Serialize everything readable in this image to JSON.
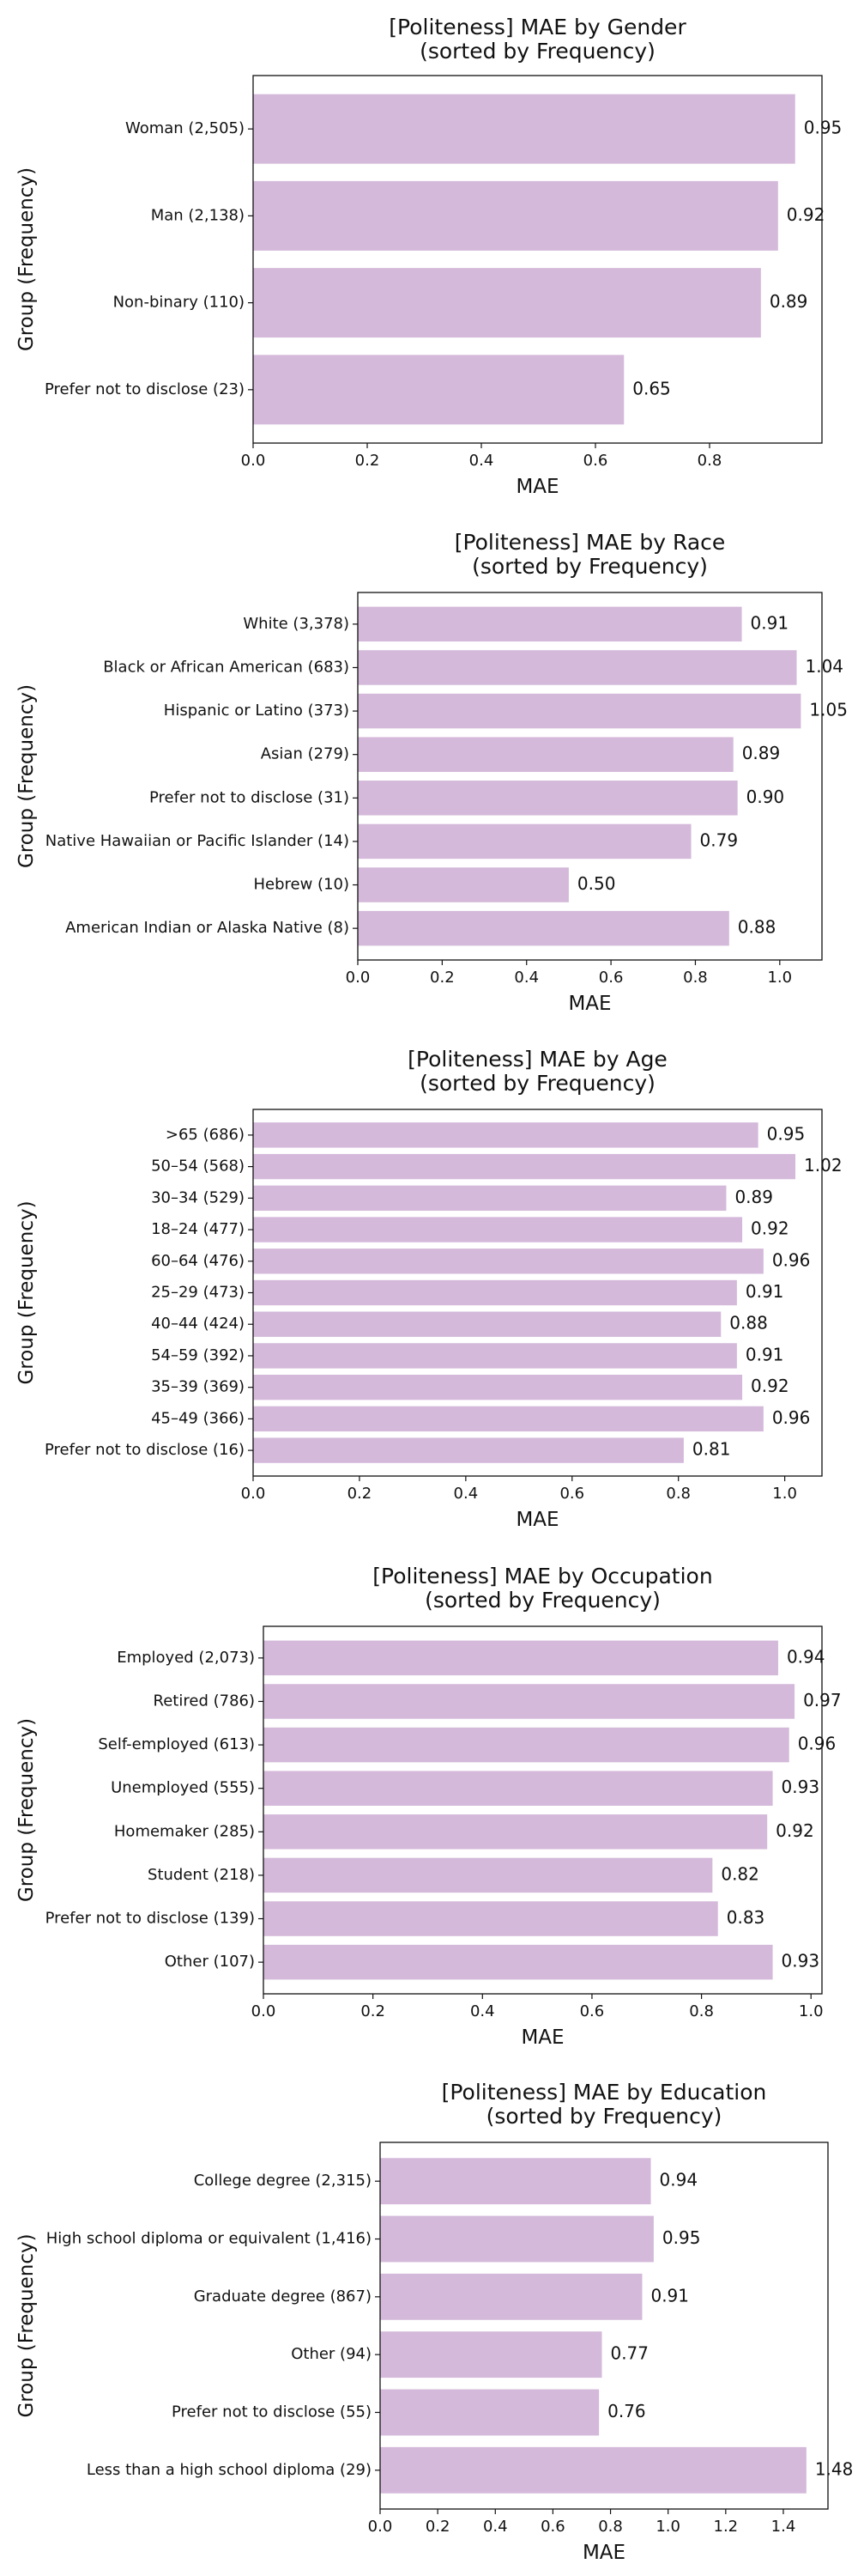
{
  "figure": {
    "ylabel": "Group (Frequency)",
    "xlabel": "MAE"
  },
  "chart_data": [
    {
      "type": "bar",
      "orientation": "horizontal",
      "title": "[Politeness] MAE by Gender",
      "subtitle": "(sorted by Frequency)",
      "xlabel": "MAE",
      "ylabel": "Group (Frequency)",
      "categories": [
        "Woman (2,505)",
        "Man (2,138)",
        "Non-binary (110)",
        "Prefer not to disclose (23)"
      ],
      "values": [
        0.95,
        0.92,
        0.89,
        0.65
      ],
      "value_labels": [
        "0.95",
        "0.92",
        "0.89",
        "0.65"
      ],
      "xlim": [
        0,
        0.997
      ],
      "xticks": [
        0,
        0.2,
        0.4,
        0.6,
        0.8
      ],
      "xtick_labels": [
        "0.0",
        "0.2",
        "0.4",
        "0.6",
        "0.8"
      ],
      "bar_color": "#d4b9da",
      "grid": false
    },
    {
      "type": "bar",
      "orientation": "horizontal",
      "title": "[Politeness] MAE by Race",
      "subtitle": "(sorted by Frequency)",
      "xlabel": "MAE",
      "ylabel": "Group (Frequency)",
      "categories": [
        "White (3,378)",
        "Black or African American (683)",
        "Hispanic or Latino (373)",
        "Asian (279)",
        "Prefer not to disclose (31)",
        "Native Hawaiian or Pacific Islander (14)",
        "Hebrew (10)",
        "American Indian or Alaska Native (8)"
      ],
      "values": [
        0.91,
        1.04,
        1.05,
        0.89,
        0.9,
        0.79,
        0.5,
        0.88
      ],
      "value_labels": [
        "0.91",
        "1.04",
        "1.05",
        "0.89",
        "0.90",
        "0.79",
        "0.50",
        "0.88"
      ],
      "xlim": [
        0,
        1.1
      ],
      "xticks": [
        0,
        0.2,
        0.4,
        0.6,
        0.8,
        1.0
      ],
      "xtick_labels": [
        "0.0",
        "0.2",
        "0.4",
        "0.6",
        "0.8",
        "1.0"
      ],
      "bar_color": "#d4b9da",
      "grid": false
    },
    {
      "type": "bar",
      "orientation": "horizontal",
      "title": "[Politeness] MAE by Age",
      "subtitle": "(sorted by Frequency)",
      "xlabel": "MAE",
      "ylabel": "Group (Frequency)",
      "categories": [
        ">65 (686)",
        "50–54 (568)",
        "30–34 (529)",
        "18–24 (477)",
        "60–64 (476)",
        "25–29 (473)",
        "40–44 (424)",
        "54–59 (392)",
        "35–39 (369)",
        "45–49 (366)",
        "Prefer not to disclose (16)"
      ],
      "values": [
        0.95,
        1.02,
        0.89,
        0.92,
        0.96,
        0.91,
        0.88,
        0.91,
        0.92,
        0.96,
        0.81
      ],
      "value_labels": [
        "0.95",
        "1.02",
        "0.89",
        "0.92",
        "0.96",
        "0.91",
        "0.88",
        "0.91",
        "0.92",
        "0.96",
        "0.81"
      ],
      "xlim": [
        0,
        1.07
      ],
      "xticks": [
        0,
        0.2,
        0.4,
        0.6,
        0.8,
        1.0
      ],
      "xtick_labels": [
        "0.0",
        "0.2",
        "0.4",
        "0.6",
        "0.8",
        "1.0"
      ],
      "bar_color": "#d4b9da",
      "grid": false
    },
    {
      "type": "bar",
      "orientation": "horizontal",
      "title": "[Politeness] MAE by Occupation",
      "subtitle": "(sorted by Frequency)",
      "xlabel": "MAE",
      "ylabel": "Group (Frequency)",
      "categories": [
        "Employed (2,073)",
        "Retired (786)",
        "Self-employed (613)",
        "Unemployed (555)",
        "Homemaker (285)",
        "Student (218)",
        "Prefer not to disclose (139)",
        "Other (107)"
      ],
      "values": [
        0.94,
        0.97,
        0.96,
        0.93,
        0.92,
        0.82,
        0.83,
        0.93
      ],
      "value_labels": [
        "0.94",
        "0.97",
        "0.96",
        "0.93",
        "0.92",
        "0.82",
        "0.83",
        "0.93"
      ],
      "xlim": [
        0,
        1.02
      ],
      "xticks": [
        0,
        0.2,
        0.4,
        0.6,
        0.8,
        1.0
      ],
      "xtick_labels": [
        "0.0",
        "0.2",
        "0.4",
        "0.6",
        "0.8",
        "1.0"
      ],
      "bar_color": "#d4b9da",
      "grid": false
    },
    {
      "type": "bar",
      "orientation": "horizontal",
      "title": "[Politeness] MAE by Education",
      "subtitle": "(sorted by Frequency)",
      "xlabel": "MAE",
      "ylabel": "Group (Frequency)",
      "categories": [
        "College degree (2,315)",
        "High school diploma or equivalent (1,416)",
        "Graduate degree (867)",
        "Other (94)",
        "Prefer not to disclose (55)",
        "Less than a high school diploma (29)"
      ],
      "values": [
        0.94,
        0.95,
        0.91,
        0.77,
        0.76,
        1.48
      ],
      "value_labels": [
        "0.94",
        "0.95",
        "0.91",
        "0.77",
        "0.76",
        "1.48"
      ],
      "xlim": [
        0,
        1.555
      ],
      "xticks": [
        0,
        0.2,
        0.4,
        0.6,
        0.8,
        1.0,
        1.2,
        1.4
      ],
      "xtick_labels": [
        "0.0",
        "0.2",
        "0.4",
        "0.6",
        "0.8",
        "1.0",
        "1.2",
        "1.4"
      ],
      "bar_color": "#d4b9da",
      "grid": false
    }
  ]
}
